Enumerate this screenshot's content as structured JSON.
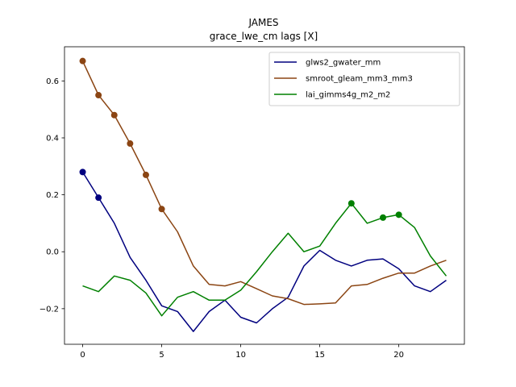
{
  "chart_data": {
    "type": "line",
    "title": "JAMES",
    "subtitle": "grace_lwe_cm lags [X]",
    "xlabel": "",
    "ylabel": "",
    "xlim": [
      -1.15,
      24.15
    ],
    "ylim": [
      -0.325,
      0.72
    ],
    "xticks": [
      0,
      5,
      10,
      15,
      20
    ],
    "yticks": [
      -0.2,
      0.0,
      0.2,
      0.4,
      0.6
    ],
    "ytick_labels": [
      "−0.2",
      "0.0",
      "0.2",
      "0.4",
      "0.6"
    ],
    "grid": false,
    "legend_position": "top-right",
    "x": [
      0,
      1,
      2,
      3,
      4,
      5,
      6,
      7,
      8,
      9,
      10,
      11,
      12,
      13,
      14,
      15,
      16,
      17,
      18,
      19,
      20,
      21,
      22,
      23
    ],
    "series": [
      {
        "name": "glws2_gwater_mm",
        "color": "#00007f",
        "values": [
          0.28,
          0.19,
          0.1,
          -0.02,
          -0.1,
          -0.19,
          -0.21,
          -0.28,
          -0.21,
          -0.17,
          -0.23,
          -0.25,
          -0.2,
          -0.16,
          -0.05,
          0.005,
          -0.03,
          -0.05,
          -0.03,
          -0.025,
          -0.06,
          -0.12,
          -0.14,
          -0.1
        ],
        "markers": [
          0,
          1
        ]
      },
      {
        "name": "smroot_gleam_mm3_mm3",
        "color": "#8b4513",
        "values": [
          0.67,
          0.55,
          0.48,
          0.38,
          0.27,
          0.15,
          0.07,
          -0.05,
          -0.115,
          -0.12,
          -0.105,
          -0.13,
          -0.155,
          -0.165,
          -0.185,
          -0.183,
          -0.18,
          -0.12,
          -0.115,
          -0.093,
          -0.075,
          -0.075,
          -0.05,
          -0.03
        ],
        "markers": [
          0,
          1,
          2,
          3,
          4,
          5
        ]
      },
      {
        "name": "lai_gimms4g_m2_m2",
        "color": "#008000",
        "values": [
          -0.12,
          -0.14,
          -0.085,
          -0.1,
          -0.145,
          -0.225,
          -0.16,
          -0.14,
          -0.17,
          -0.17,
          -0.135,
          -0.07,
          0.0,
          0.065,
          0.0,
          0.02,
          0.1,
          0.17,
          0.1,
          0.12,
          0.13,
          0.085,
          -0.015,
          -0.085
        ],
        "markers": [
          17,
          19,
          20
        ]
      }
    ]
  }
}
